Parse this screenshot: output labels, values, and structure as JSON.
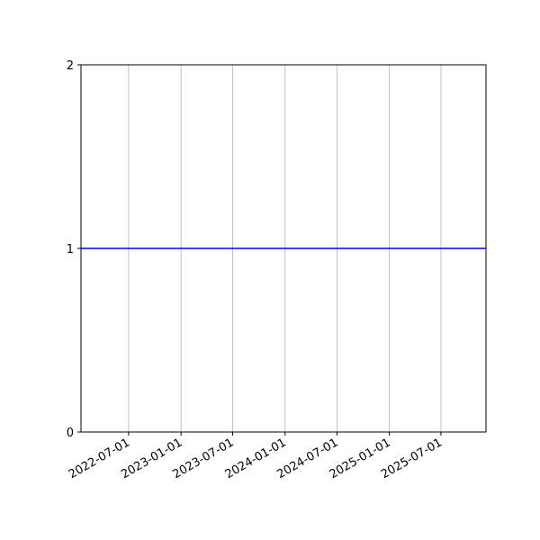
{
  "chart_data": {
    "type": "line",
    "title": "",
    "xlabel": "",
    "ylabel": "",
    "xlim": [
      "2022-01-15",
      "2025-12-06"
    ],
    "ylim": [
      0,
      2
    ],
    "x_ticks": [
      "2022-07-01",
      "2023-01-01",
      "2023-07-01",
      "2024-01-01",
      "2024-07-01",
      "2025-01-01",
      "2025-07-01"
    ],
    "y_ticks": [
      0,
      1,
      2
    ],
    "y_tick_labels": [
      "0",
      "1",
      "2"
    ],
    "grid": "x-axis vertical gridlines on",
    "series": [
      {
        "x": [
          "2022-01-15",
          "2025-12-06"
        ],
        "y": [
          1,
          1
        ],
        "color": "#0000ff"
      }
    ],
    "colors": {
      "line": "#0000ff",
      "grid": "#b0b0b0",
      "axes": "#000000"
    }
  }
}
